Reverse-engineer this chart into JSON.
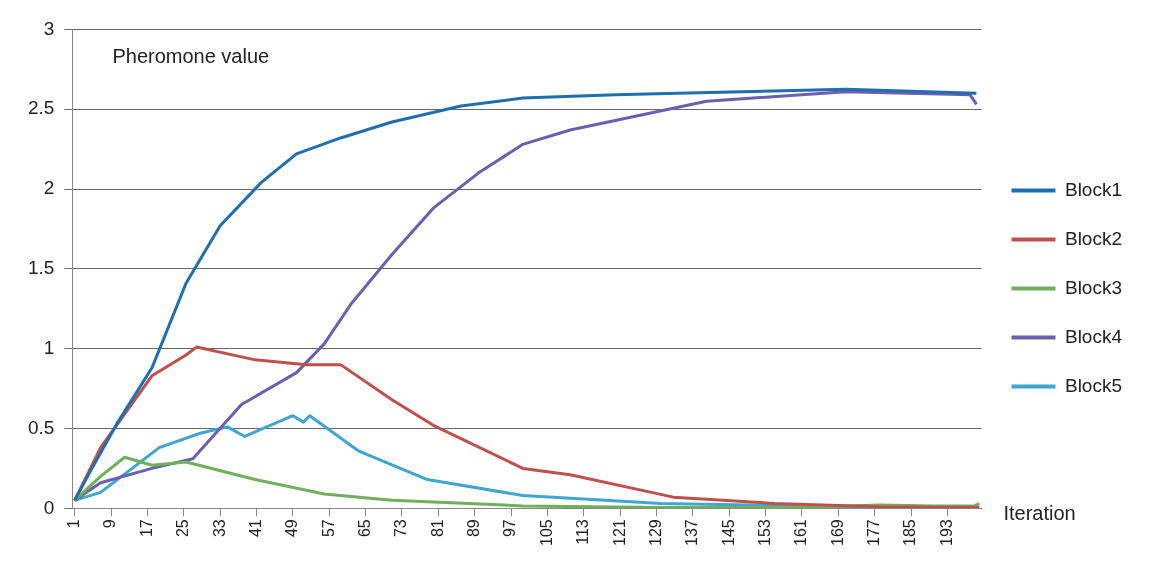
{
  "chart_data": {
    "type": "line",
    "ylabel": "Pheromone value",
    "xlabel": "Iteration",
    "xlim": [
      0.5,
      200.5
    ],
    "xticks": [
      1,
      9,
      17,
      25,
      33,
      41,
      49,
      57,
      65,
      73,
      81,
      89,
      97,
      105,
      113,
      121,
      129,
      137,
      145,
      153,
      161,
      169,
      177,
      185,
      193
    ],
    "ylim": [
      0,
      3
    ],
    "yticks": [
      0,
      0.5,
      1,
      1.5,
      2,
      2.5,
      3
    ],
    "grid": "y",
    "legend": "right",
    "marker": "none",
    "line_style": "solid",
    "series": [
      {
        "name": "Block1",
        "color": "#1f6fb0",
        "x": [
          1,
          4.4,
          10.5,
          18,
          25.5,
          33,
          42,
          49.8,
          59.5,
          70.8,
          86,
          99.6,
          120,
          140.5,
          170.6,
          199.4
        ],
        "values": [
          0.05,
          0.23,
          0.54,
          0.88,
          1.41,
          1.77,
          2.04,
          2.22,
          2.32,
          2.42,
          2.52,
          2.57,
          2.59,
          2.605,
          2.625,
          2.6
        ]
      },
      {
        "name": "Block2",
        "color": "#c0504d",
        "x": [
          1,
          6.7,
          18,
          25.5,
          27.8,
          40.7,
          52,
          59.5,
          70.8,
          79.9,
          99.6,
          110,
          132.7,
          155,
          178,
          200
        ],
        "values": [
          0.05,
          0.38,
          0.83,
          0.96,
          1.01,
          0.93,
          0.9,
          0.9,
          0.68,
          0.52,
          0.25,
          0.21,
          0.07,
          0.03,
          0.01,
          0.005
        ]
      },
      {
        "name": "Block3",
        "color": "#6fb05a",
        "x": [
          1,
          6.7,
          12,
          18,
          25.5,
          40.7,
          55.9,
          70.8,
          99.6,
          130,
          160,
          178,
          190,
          199,
          200
        ],
        "values": [
          0.05,
          0.2,
          0.32,
          0.27,
          0.29,
          0.18,
          0.09,
          0.05,
          0.015,
          0.005,
          0.005,
          0.02,
          0.015,
          0.015,
          0.03
        ]
      },
      {
        "name": "Block4",
        "color": "#6b5fb0",
        "x": [
          1,
          6.7,
          18,
          27,
          37.7,
          49.8,
          55.9,
          61.8,
          70.8,
          79.9,
          89.8,
          99.6,
          110,
          140,
          170.6,
          198,
          199.4
        ],
        "values": [
          0.05,
          0.16,
          0.25,
          0.31,
          0.65,
          0.85,
          1.03,
          1.28,
          1.59,
          1.88,
          2.1,
          2.28,
          2.37,
          2.55,
          2.61,
          2.59,
          2.53
        ]
      },
      {
        "name": "Block5",
        "color": "#3ea6d0",
        "x": [
          1,
          6.7,
          19.6,
          28.6,
          34.6,
          38.4,
          49,
          51.3,
          52.7,
          63.4,
          78.6,
          99.6,
          130,
          170,
          200
        ],
        "values": [
          0.05,
          0.1,
          0.38,
          0.47,
          0.51,
          0.45,
          0.58,
          0.54,
          0.58,
          0.36,
          0.18,
          0.08,
          0.03,
          0.01,
          0.01
        ]
      }
    ]
  }
}
